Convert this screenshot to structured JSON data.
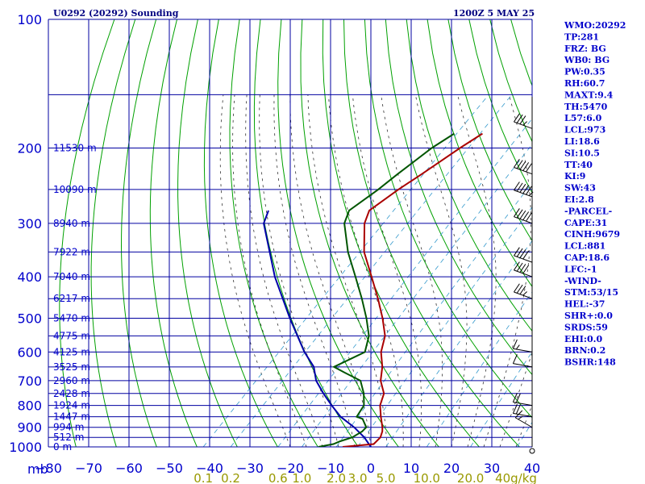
{
  "header": {
    "station": "U0292 (20292) Sounding",
    "time": "1200Z  5 MAY 25"
  },
  "indices": [
    "WMO:20292",
    "TP:281",
    "FRZ: BG",
    "WB0: BG",
    "PW:0.35",
    "RH:60.7",
    "MAXT:9.4",
    "TH:5470",
    "L57:6.0",
    "LCL:973",
    "LI:18.6",
    "SI:10.5",
    "TT:40",
    "KI:9",
    "SW:43",
    "EI:2.8",
    "-PARCEL-",
    "CAPE:31",
    "CINH:9679",
    "LCL:881",
    "CAP:18.6",
    "LFC:-1",
    "-WIND-",
    "STM:53/15",
    "HEL:-37",
    "SHR+:0.0",
    "SRDS:59",
    "EHI:0.0",
    "BRN:0.2",
    "BSHR:148"
  ],
  "colors": {
    "grid": "#0000a0",
    "dry_adiabat": "#00a000",
    "moist_adiabat": "#333333",
    "mixing_ratio": "#3399cc",
    "temperature": "#aa0000",
    "dewpoint": "#005500",
    "parcel": "#0000aa",
    "pressure_labels": "#0000cc",
    "mixing_labels": "#999900"
  },
  "chart_data": {
    "type": "skew-t",
    "x_unit_label": "mb",
    "pressure_levels": [
      100,
      200,
      300,
      400,
      500,
      600,
      700,
      800,
      900,
      1000
    ],
    "pressure_labels": [
      "100",
      "200",
      "300",
      "400",
      "500",
      "600",
      "700",
      "800",
      "900",
      "1000"
    ],
    "temperature_ticks": [
      -80,
      -70,
      -60,
      -50,
      -40,
      -30,
      -20,
      -10,
      0,
      10,
      20,
      30,
      40
    ],
    "temperature_tick_labels": [
      "−80",
      "−70",
      "−60",
      "−50",
      "−40",
      "−30",
      "−20",
      "−10",
      "0",
      "10",
      "20",
      "30",
      "40"
    ],
    "height_labels": [
      {
        "p": 200,
        "label": "11530 m"
      },
      {
        "p": 250,
        "label": "10090 m"
      },
      {
        "p": 300,
        "label": "8940 m"
      },
      {
        "p": 350,
        "label": "7922 m"
      },
      {
        "p": 400,
        "label": "7040 m"
      },
      {
        "p": 450,
        "label": "6217 m"
      },
      {
        "p": 500,
        "label": "5470 m"
      },
      {
        "p": 550,
        "label": "4775 m"
      },
      {
        "p": 600,
        "label": "4125 m"
      },
      {
        "p": 650,
        "label": "3525 m"
      },
      {
        "p": 700,
        "label": "2960 m"
      },
      {
        "p": 750,
        "label": "2428 m"
      },
      {
        "p": 800,
        "label": "1924 m"
      },
      {
        "p": 850,
        "label": "1447 m"
      },
      {
        "p": 900,
        "label": "994 m"
      },
      {
        "p": 950,
        "label": "512 m"
      },
      {
        "p": 1000,
        "label": "0 m"
      }
    ],
    "mixing_ratio_labels": [
      "0.1",
      "0.2",
      "0.6",
      "1.0",
      "2.0",
      "3.0",
      "5.0",
      "10.0",
      "20.0",
      "40g/kg"
    ],
    "temperature": [
      {
        "p": 1000,
        "t": -7
      },
      {
        "p": 985,
        "t": 0
      },
      {
        "p": 950,
        "t": 0
      },
      {
        "p": 920,
        "t": -1
      },
      {
        "p": 900,
        "t": -2
      },
      {
        "p": 850,
        "t": -5
      },
      {
        "p": 800,
        "t": -8
      },
      {
        "p": 750,
        "t": -10
      },
      {
        "p": 700,
        "t": -14
      },
      {
        "p": 650,
        "t": -17
      },
      {
        "p": 600,
        "t": -21
      },
      {
        "p": 550,
        "t": -24
      },
      {
        "p": 500,
        "t": -29
      },
      {
        "p": 450,
        "t": -35
      },
      {
        "p": 400,
        "t": -42
      },
      {
        "p": 350,
        "t": -50
      },
      {
        "p": 300,
        "t": -57
      },
      {
        "p": 280,
        "t": -59
      },
      {
        "p": 250,
        "t": -57
      },
      {
        "p": 230,
        "t": -55
      },
      {
        "p": 200,
        "t": -52
      },
      {
        "p": 185,
        "t": -50
      }
    ],
    "dewpoint": [
      {
        "p": 1000,
        "t": -13
      },
      {
        "p": 985,
        "t": -10
      },
      {
        "p": 970,
        "t": -9
      },
      {
        "p": 950,
        "t": -7
      },
      {
        "p": 920,
        "t": -6
      },
      {
        "p": 900,
        "t": -6
      },
      {
        "p": 860,
        "t": -9
      },
      {
        "p": 850,
        "t": -11
      },
      {
        "p": 800,
        "t": -12
      },
      {
        "p": 750,
        "t": -15
      },
      {
        "p": 700,
        "t": -19
      },
      {
        "p": 670,
        "t": -25
      },
      {
        "p": 650,
        "t": -29
      },
      {
        "p": 600,
        "t": -25
      },
      {
        "p": 550,
        "t": -28
      },
      {
        "p": 500,
        "t": -33
      },
      {
        "p": 450,
        "t": -39
      },
      {
        "p": 400,
        "t": -46
      },
      {
        "p": 350,
        "t": -54
      },
      {
        "p": 300,
        "t": -62
      },
      {
        "p": 280,
        "t": -64
      },
      {
        "p": 250,
        "t": -62
      },
      {
        "p": 230,
        "t": -61
      },
      {
        "p": 200,
        "t": -59
      },
      {
        "p": 185,
        "t": -57
      }
    ],
    "parcel": [
      {
        "p": 1000,
        "t": 0
      },
      {
        "p": 950,
        "t": -4
      },
      {
        "p": 900,
        "t": -9
      },
      {
        "p": 850,
        "t": -15
      },
      {
        "p": 800,
        "t": -20
      },
      {
        "p": 750,
        "t": -25
      },
      {
        "p": 700,
        "t": -30
      },
      {
        "p": 650,
        "t": -34
      },
      {
        "p": 600,
        "t": -40
      },
      {
        "p": 500,
        "t": -52
      },
      {
        "p": 400,
        "t": -66
      },
      {
        "p": 300,
        "t": -82
      },
      {
        "p": 280,
        "t": -84
      }
    ],
    "wind_barbs": [
      {
        "p": 180,
        "dir": 290,
        "kt": 35
      },
      {
        "p": 230,
        "dir": 290,
        "kt": 50
      },
      {
        "p": 260,
        "dir": 290,
        "kt": 55
      },
      {
        "p": 300,
        "dir": 290,
        "kt": 50
      },
      {
        "p": 370,
        "dir": 290,
        "kt": 40
      },
      {
        "p": 400,
        "dir": 290,
        "kt": 40
      },
      {
        "p": 450,
        "dir": 290,
        "kt": 35
      },
      {
        "p": 600,
        "dir": 280,
        "kt": 15
      },
      {
        "p": 650,
        "dir": 280,
        "kt": 10
      },
      {
        "p": 800,
        "dir": 280,
        "kt": 20
      },
      {
        "p": 850,
        "dir": 280,
        "kt": 20
      },
      {
        "p": 900,
        "dir": 300,
        "kt": 15
      },
      {
        "p": 1000,
        "dir": 0,
        "kt": 0
      }
    ],
    "grid": true
  }
}
